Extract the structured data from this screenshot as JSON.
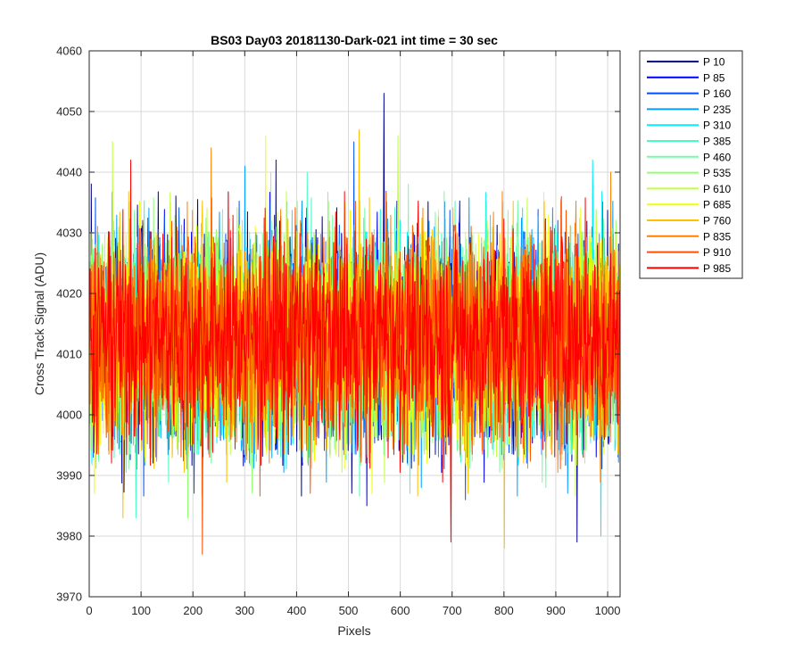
{
  "chart_data": {
    "type": "line",
    "title": "BS03 Day03 20181130-Dark-021 int time = 30 sec",
    "xlabel": "Pixels",
    "ylabel": "Cross Track Signal (ADU)",
    "xlim": [
      0,
      1024
    ],
    "ylim": [
      3970,
      4060
    ],
    "xticks": [
      0,
      100,
      200,
      300,
      400,
      500,
      600,
      700,
      800,
      900,
      1000
    ],
    "yticks": [
      3970,
      3980,
      3990,
      4000,
      4010,
      4020,
      4030,
      4040,
      4050,
      4060
    ],
    "grid": true,
    "legend_placement": "outside-top-right",
    "series_profile": {
      "points_per_series": 1024,
      "mean_signal": 4013,
      "typical_range": [
        3992,
        4034
      ]
    },
    "series": [
      {
        "name": "P 10",
        "color": "#00008F",
        "notable_points": [
          [
            568,
            4053
          ],
          [
            940,
            3979
          ]
        ]
      },
      {
        "name": "P 85",
        "color": "#0000EF",
        "notable_points": [
          [
            360,
            4042
          ],
          [
            535,
            3985
          ]
        ]
      },
      {
        "name": "P 160",
        "color": "#0050FF",
        "notable_points": [
          [
            510,
            4045
          ],
          [
            725,
            3986
          ]
        ]
      },
      {
        "name": "P 235",
        "color": "#00A0FF",
        "notable_points": [
          [
            300,
            4041
          ],
          [
            640,
            3988
          ]
        ]
      },
      {
        "name": "P 310",
        "color": "#00F0FF",
        "notable_points": [
          [
            970,
            4042
          ],
          [
            986,
            3980
          ]
        ]
      },
      {
        "name": "P 385",
        "color": "#40FFBF",
        "notable_points": [
          [
            90,
            3983
          ],
          [
            420,
            4040
          ]
        ]
      },
      {
        "name": "P 460",
        "color": "#70FFA0",
        "notable_points": [
          [
            615,
            4038
          ],
          [
            880,
            3988
          ]
        ]
      },
      {
        "name": "P 535",
        "color": "#90FF70",
        "notable_points": [
          [
            190,
            3983
          ],
          [
            350,
            4040
          ]
        ]
      },
      {
        "name": "P 610",
        "color": "#C0FF40",
        "notable_points": [
          [
            45,
            4045
          ],
          [
            595,
            4046
          ]
        ]
      },
      {
        "name": "P 685",
        "color": "#F0FF00",
        "notable_points": [
          [
            340,
            4046
          ],
          [
            545,
            3987
          ]
        ]
      },
      {
        "name": "P 760",
        "color": "#FFC000",
        "notable_points": [
          [
            65,
            3983
          ],
          [
            800,
            3978
          ],
          [
            520,
            4047
          ]
        ]
      },
      {
        "name": "P 835",
        "color": "#FF8000",
        "notable_points": [
          [
            235,
            4044
          ],
          [
            1005,
            4040
          ]
        ]
      },
      {
        "name": "P 910",
        "color": "#FF5000",
        "notable_points": [
          [
            218,
            3977
          ],
          [
            910,
            4036
          ]
        ]
      },
      {
        "name": "P 985",
        "color": "#FF0000",
        "notable_points": [
          [
            697,
            3979
          ],
          [
            80,
            4042
          ]
        ]
      }
    ]
  }
}
